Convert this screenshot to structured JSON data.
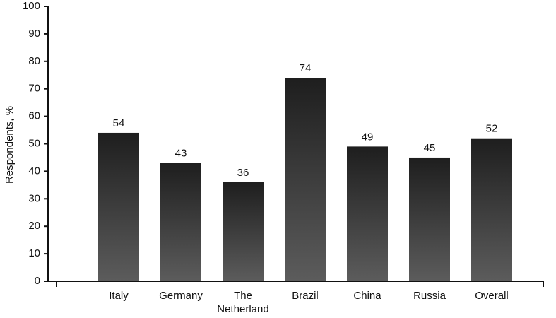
{
  "chart_data": {
    "type": "bar",
    "y_label": "Respondents, %",
    "categories": [
      "Italy",
      "Germany",
      "The Netherland",
      "Brazil",
      "China",
      "Russia",
      "Overall"
    ],
    "values": [
      54,
      43,
      36,
      74,
      49,
      45,
      52
    ],
    "color": "#1e1e1e",
    "ylim": [
      0,
      100
    ],
    "yticks": [
      0,
      10,
      20,
      30,
      40,
      50,
      60,
      70,
      80,
      90,
      100
    ],
    "grid": false
  }
}
